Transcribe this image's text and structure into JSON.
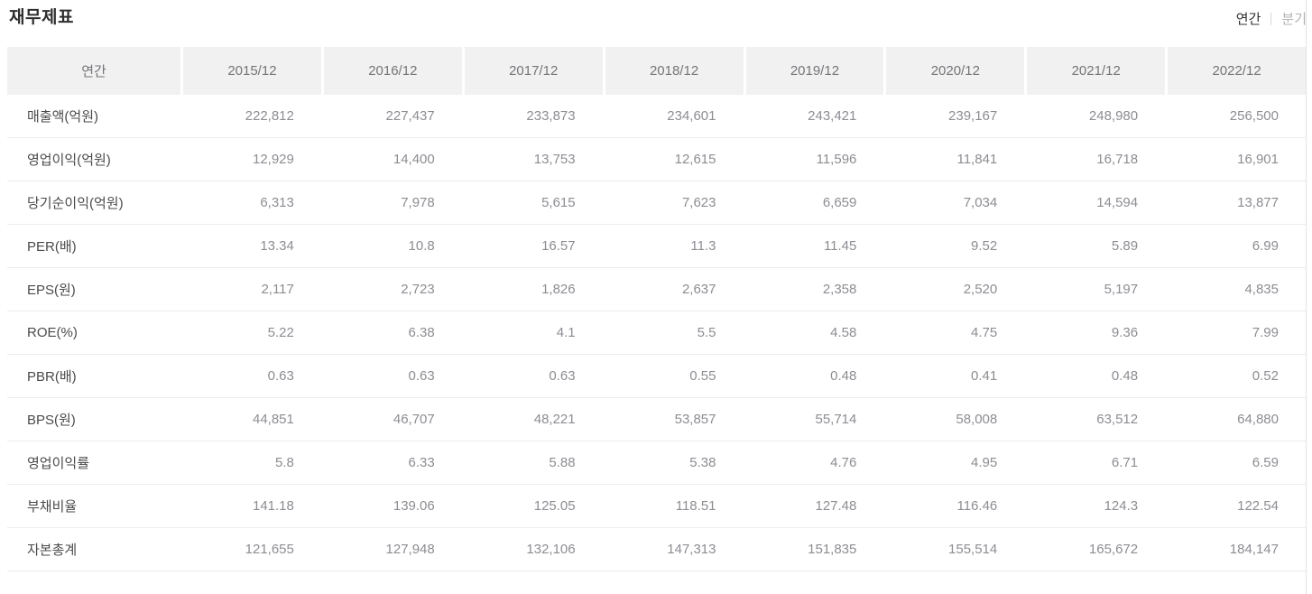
{
  "title": "재무제표",
  "period_toggle": {
    "annual_label": "연간",
    "quarterly_label": "분기"
  },
  "table": {
    "corner_label": "연간",
    "columns": [
      "2015/12",
      "2016/12",
      "2017/12",
      "2018/12",
      "2019/12",
      "2020/12",
      "2021/12",
      "2022/12"
    ],
    "rows": [
      {
        "label": "매출액(억원)",
        "values": [
          "222,812",
          "227,437",
          "233,873",
          "234,601",
          "243,421",
          "239,167",
          "248,980",
          "256,500"
        ]
      },
      {
        "label": "영업이익(억원)",
        "values": [
          "12,929",
          "14,400",
          "13,753",
          "12,615",
          "11,596",
          "11,841",
          "16,718",
          "16,901"
        ]
      },
      {
        "label": "당기순이익(억원)",
        "values": [
          "6,313",
          "7,978",
          "5,615",
          "7,623",
          "6,659",
          "7,034",
          "14,594",
          "13,877"
        ]
      },
      {
        "label": "PER(배)",
        "values": [
          "13.34",
          "10.8",
          "16.57",
          "11.3",
          "11.45",
          "9.52",
          "5.89",
          "6.99"
        ]
      },
      {
        "label": "EPS(원)",
        "values": [
          "2,117",
          "2,723",
          "1,826",
          "2,637",
          "2,358",
          "2,520",
          "5,197",
          "4,835"
        ]
      },
      {
        "label": "ROE(%)",
        "values": [
          "5.22",
          "6.38",
          "4.1",
          "5.5",
          "4.58",
          "4.75",
          "9.36",
          "7.99"
        ]
      },
      {
        "label": "PBR(배)",
        "values": [
          "0.63",
          "0.63",
          "0.63",
          "0.55",
          "0.48",
          "0.41",
          "0.48",
          "0.52"
        ]
      },
      {
        "label": "BPS(원)",
        "values": [
          "44,851",
          "46,707",
          "48,221",
          "53,857",
          "55,714",
          "58,008",
          "63,512",
          "64,880"
        ]
      },
      {
        "label": "영업이익률",
        "values": [
          "5.8",
          "6.33",
          "5.88",
          "5.38",
          "4.76",
          "4.95",
          "6.71",
          "6.59"
        ]
      },
      {
        "label": "부채비율",
        "values": [
          "141.18",
          "139.06",
          "125.05",
          "118.51",
          "127.48",
          "116.46",
          "124.3",
          "122.54"
        ]
      },
      {
        "label": "자본총계",
        "values": [
          "121,655",
          "127,948",
          "132,106",
          "147,313",
          "151,835",
          "155,514",
          "165,672",
          "184,147"
        ]
      }
    ]
  },
  "colors": {
    "header_bg": "#f1f1f2",
    "header_text": "#757578",
    "row_label_text": "#4a4a4a",
    "value_text": "#8d8d93",
    "row_divider": "#ececec",
    "toggle_active": "#333333",
    "toggle_inactive": "#b3b3b6"
  }
}
